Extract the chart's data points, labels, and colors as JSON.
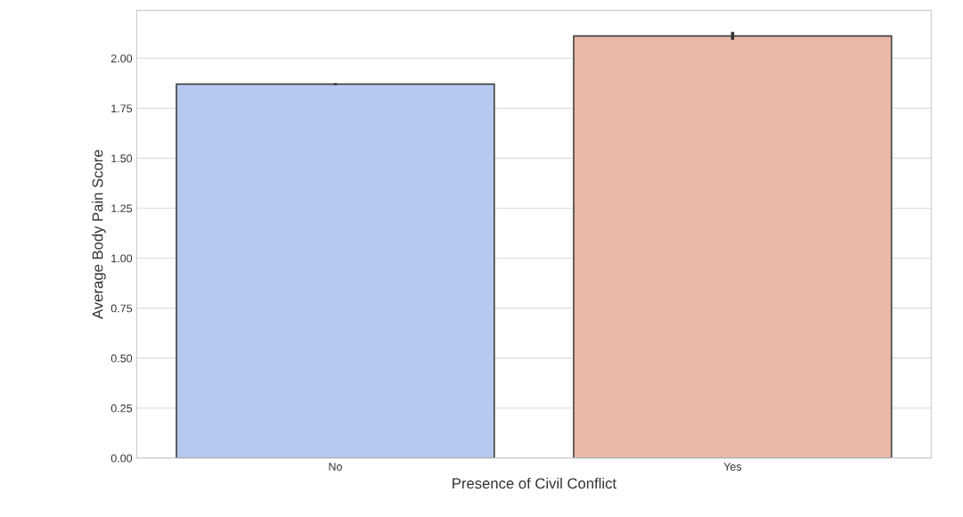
{
  "chart_data": {
    "type": "bar",
    "xlabel": "Presence of Civil Conflict",
    "ylabel": "Average Body Pain Score",
    "categories": [
      "No",
      "Yes"
    ],
    "values": [
      1.871,
      2.112
    ],
    "errors": [
      0.005,
      0.02
    ],
    "colors": [
      "#b5c9f1",
      "#eabaa7"
    ],
    "ylim": [
      0,
      2.24
    ],
    "yticks": [
      {
        "value": 0,
        "label": "0.00"
      },
      {
        "value": 0.25,
        "label": "0.25"
      },
      {
        "value": 0.5,
        "label": "0.50"
      },
      {
        "value": 0.75,
        "label": "0.75"
      },
      {
        "value": 1,
        "label": "1.00"
      },
      {
        "value": 1.25,
        "label": "1.25"
      },
      {
        "value": 1.5,
        "label": "1.50"
      },
      {
        "value": 1.75,
        "label": "1.75"
      },
      {
        "value": 2,
        "label": "2.00"
      }
    ],
    "grid": "y"
  }
}
